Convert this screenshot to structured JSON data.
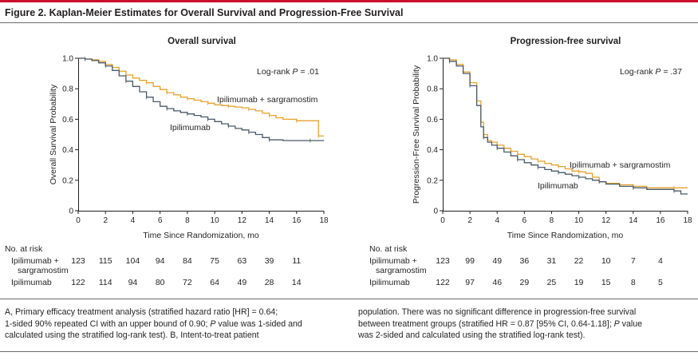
{
  "figure": {
    "title": "Figure 2. Kaplan-Meier Estimates for Overall Survival and Progression-Free Survival"
  },
  "colors": {
    "combo": "#e8a12c",
    "mono": "#4a5a68",
    "axis": "#231f20",
    "accent": "#c8102e"
  },
  "chart_data": [
    {
      "type": "line",
      "title": "Overall survival",
      "xlabel": "Time Since Randomization, mo",
      "ylabel": "Overall Survival Probability",
      "xlim": [
        0,
        18
      ],
      "ylim": [
        0,
        1.0
      ],
      "xticks": [
        "0",
        "2",
        "4",
        "6",
        "8",
        "10",
        "12",
        "14",
        "16",
        "18"
      ],
      "yticks": [
        "0",
        "0.2",
        "0.4",
        "0.6",
        "0.8",
        "1.0"
      ],
      "grid": false,
      "annotation": {
        "pre": "Log-rank ",
        "italic": "P",
        "post": " = .01"
      },
      "series": [
        {
          "name": "Ipilimumab + sargramostim",
          "color": "#e8a12c",
          "points": [
            [
              0,
              1.0
            ],
            [
              0.5,
              0.995
            ],
            [
              1,
              0.99
            ],
            [
              1.5,
              0.98
            ],
            [
              2,
              0.96
            ],
            [
              2.5,
              0.94
            ],
            [
              3,
              0.915
            ],
            [
              3.5,
              0.89
            ],
            [
              4,
              0.87
            ],
            [
              4.5,
              0.855
            ],
            [
              5,
              0.84
            ],
            [
              5.5,
              0.815
            ],
            [
              6,
              0.795
            ],
            [
              6.5,
              0.775
            ],
            [
              7,
              0.76
            ],
            [
              7.5,
              0.745
            ],
            [
              8,
              0.735
            ],
            [
              8.5,
              0.725
            ],
            [
              9,
              0.715
            ],
            [
              9.5,
              0.705
            ],
            [
              10,
              0.695
            ],
            [
              10.5,
              0.69
            ],
            [
              11,
              0.685
            ],
            [
              11.5,
              0.68
            ],
            [
              12,
              0.675
            ],
            [
              12.5,
              0.665
            ],
            [
              13,
              0.655
            ],
            [
              13.5,
              0.64
            ],
            [
              14,
              0.625
            ],
            [
              14.5,
              0.61
            ],
            [
              15,
              0.6
            ],
            [
              16,
              0.59
            ],
            [
              17,
              0.59
            ],
            [
              17.5,
              0.59
            ],
            [
              17.6,
              0.49
            ],
            [
              18,
              0.49
            ]
          ]
        },
        {
          "name": "Ipilimumab",
          "color": "#4a5a68",
          "points": [
            [
              0,
              1.0
            ],
            [
              0.5,
              0.995
            ],
            [
              1,
              0.985
            ],
            [
              1.5,
              0.97
            ],
            [
              2,
              0.95
            ],
            [
              2.5,
              0.92
            ],
            [
              3,
              0.885
            ],
            [
              3.5,
              0.85
            ],
            [
              4,
              0.815
            ],
            [
              4.5,
              0.78
            ],
            [
              5,
              0.745
            ],
            [
              5.5,
              0.715
            ],
            [
              6,
              0.685
            ],
            [
              6.5,
              0.67
            ],
            [
              7,
              0.655
            ],
            [
              7.5,
              0.645
            ],
            [
              8,
              0.635
            ],
            [
              8.5,
              0.625
            ],
            [
              9,
              0.615
            ],
            [
              9.5,
              0.6
            ],
            [
              10,
              0.585
            ],
            [
              10.5,
              0.57
            ],
            [
              11,
              0.555
            ],
            [
              11.5,
              0.54
            ],
            [
              12,
              0.53
            ],
            [
              12.5,
              0.515
            ],
            [
              13,
              0.5
            ],
            [
              13.5,
              0.48
            ],
            [
              14,
              0.465
            ],
            [
              15,
              0.46
            ],
            [
              16,
              0.46
            ],
            [
              17,
              0.46
            ],
            [
              18,
              0.46
            ]
          ]
        }
      ],
      "series_labels": [
        "Ipilimumab + sargramostim",
        "Ipilimumab"
      ],
      "at_risk": {
        "heading": "No. at risk",
        "rows": [
          {
            "label": "Ipilimumab +",
            "label2": "sargramostim",
            "values": [
              "123",
              "115",
              "104",
              "94",
              "84",
              "75",
              "63",
              "39",
              "11"
            ]
          },
          {
            "label": "Ipilimumab",
            "label2": "",
            "values": [
              "122",
              "114",
              "94",
              "80",
              "72",
              "64",
              "49",
              "28",
              "14"
            ]
          }
        ]
      }
    },
    {
      "type": "line",
      "title": "Progression-free survival",
      "xlabel": "Time Since Randomization, mo",
      "ylabel": "Progression-Free Survival Probability",
      "xlim": [
        0,
        18
      ],
      "ylim": [
        0,
        1.0
      ],
      "xticks": [
        "0",
        "2",
        "4",
        "6",
        "8",
        "10",
        "12",
        "14",
        "16",
        "18"
      ],
      "yticks": [
        "0",
        "0.2",
        "0.4",
        "0.6",
        "0.8",
        "1.0"
      ],
      "grid": false,
      "annotation": {
        "pre": "Log-rank ",
        "italic": "P",
        "post": " = .37"
      },
      "series": [
        {
          "name": "Ipilimumab + sargramostim",
          "color": "#e8a12c",
          "points": [
            [
              0,
              1.0
            ],
            [
              0.5,
              0.99
            ],
            [
              1,
              0.96
            ],
            [
              1.5,
              0.91
            ],
            [
              2,
              0.84
            ],
            [
              2.5,
              0.72
            ],
            [
              2.8,
              0.58
            ],
            [
              3,
              0.5
            ],
            [
              3.3,
              0.46
            ],
            [
              3.6,
              0.45
            ],
            [
              4,
              0.43
            ],
            [
              4.5,
              0.41
            ],
            [
              5,
              0.39
            ],
            [
              5.5,
              0.37
            ],
            [
              6,
              0.355
            ],
            [
              6.5,
              0.34
            ],
            [
              7,
              0.325
            ],
            [
              7.5,
              0.31
            ],
            [
              8,
              0.3
            ],
            [
              8.5,
              0.29
            ],
            [
              9,
              0.275
            ],
            [
              9.5,
              0.26
            ],
            [
              10,
              0.255
            ],
            [
              10.5,
              0.245
            ],
            [
              11,
              0.22
            ],
            [
              11.5,
              0.19
            ],
            [
              12,
              0.18
            ],
            [
              13,
              0.17
            ],
            [
              14,
              0.16
            ],
            [
              15,
              0.15
            ],
            [
              16,
              0.15
            ],
            [
              17,
              0.15
            ],
            [
              18,
              0.15
            ]
          ]
        },
        {
          "name": "Ipilimumab",
          "color": "#4a5a68",
          "points": [
            [
              0,
              1.0
            ],
            [
              0.5,
              0.98
            ],
            [
              1,
              0.95
            ],
            [
              1.5,
              0.9
            ],
            [
              2,
              0.82
            ],
            [
              2.5,
              0.69
            ],
            [
              2.8,
              0.55
            ],
            [
              3,
              0.48
            ],
            [
              3.3,
              0.45
            ],
            [
              3.6,
              0.43
            ],
            [
              4,
              0.41
            ],
            [
              4.5,
              0.385
            ],
            [
              5,
              0.36
            ],
            [
              5.5,
              0.335
            ],
            [
              6,
              0.315
            ],
            [
              6.5,
              0.3
            ],
            [
              7,
              0.285
            ],
            [
              7.5,
              0.27
            ],
            [
              8,
              0.26
            ],
            [
              8.5,
              0.25
            ],
            [
              9,
              0.24
            ],
            [
              9.5,
              0.23
            ],
            [
              10,
              0.22
            ],
            [
              10.5,
              0.21
            ],
            [
              11,
              0.2
            ],
            [
              11.5,
              0.19
            ],
            [
              12,
              0.175
            ],
            [
              13,
              0.16
            ],
            [
              14,
              0.15
            ],
            [
              15,
              0.14
            ],
            [
              16,
              0.14
            ],
            [
              17,
              0.13
            ],
            [
              17.5,
              0.11
            ],
            [
              18,
              0.11
            ]
          ]
        }
      ],
      "series_labels": [
        "Ipilimumab + sargramostim",
        "Ipilimumab"
      ],
      "at_risk": {
        "heading": "No. at risk",
        "rows": [
          {
            "label": "Ipilimumab +",
            "label2": "sargramostim",
            "values": [
              "123",
              "99",
              "49",
              "36",
              "31",
              "22",
              "10",
              "7",
              "4"
            ]
          },
          {
            "label": "Ipilimumab",
            "label2": "",
            "values": [
              "122",
              "97",
              "46",
              "29",
              "25",
              "19",
              "15",
              "8",
              "5"
            ]
          }
        ]
      }
    }
  ],
  "caption": {
    "left": [
      {
        "t": "A, Primary efficacy treatment analysis (stratified hazard ratio [HR] = 0.64;"
      },
      {
        "t": "1-sided 90% repeated CI with an upper bound of 0.90; ",
        "i": "P",
        "t2": " value was 1-sided and"
      },
      {
        "t": "calculated using the stratified log-rank test). B, Intent-to-treat patient"
      }
    ],
    "right": [
      {
        "t": "population. There was no significant difference in progression-free survival"
      },
      {
        "t": "between treatment groups (stratified HR = 0.87 [95% CI, 0.64-1.18]; ",
        "i": "P",
        "t2": " value"
      },
      {
        "t": "was 2-sided and calculated using the stratified log-rank test)."
      }
    ]
  }
}
